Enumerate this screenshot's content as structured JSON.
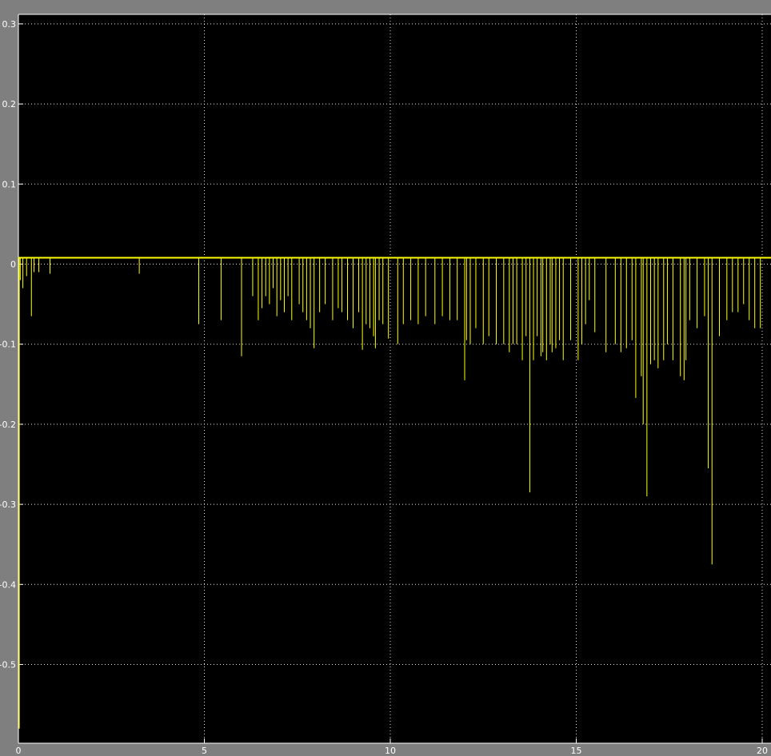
{
  "window": {
    "background": "#7f7f7f"
  },
  "chart_data": {
    "type": "line",
    "title": "",
    "xlabel": "",
    "ylabel": "",
    "xlim": [
      0,
      20
    ],
    "ylim": [
      -0.58,
      0.31
    ],
    "grid": true,
    "legend": "none",
    "colors": {
      "plot_background": "#000000",
      "line": "#ffff00",
      "grid": "#e0e0e0",
      "axis": "#ffffff",
      "tick_label": "#ffffff",
      "frame": "#7f7f7f"
    },
    "x_ticks": [
      0,
      5,
      10,
      15,
      20
    ],
    "x_tick_labels": [
      "0",
      "5",
      "10",
      "15",
      "20"
    ],
    "y_ticks": [
      0.3,
      0.2,
      0.1,
      0,
      -0.1,
      -0.2,
      -0.3,
      -0.4,
      -0.5
    ],
    "y_tick_labels": [
      "0.3",
      "0.2",
      "0.1",
      "0",
      "-0.1",
      "-0.2",
      "-0.3",
      "-0.4",
      "-0.5"
    ],
    "baseline": 0.008,
    "initial_segment": {
      "x": [
        0,
        0
      ],
      "y": [
        -0.58,
        0.008
      ]
    },
    "series": [
      {
        "name": "",
        "spikes_x": [
          0.05,
          0.12,
          0.22,
          0.35,
          0.42,
          0.55,
          0.85,
          3.25,
          4.85,
          5.45,
          6.0,
          6.3,
          6.45,
          6.55,
          6.65,
          6.75,
          6.85,
          6.95,
          7.05,
          7.15,
          7.25,
          7.35,
          7.55,
          7.65,
          7.75,
          7.85,
          7.95,
          8.1,
          8.25,
          8.45,
          8.6,
          8.7,
          8.85,
          9.0,
          9.15,
          9.25,
          9.35,
          9.45,
          9.55,
          9.6,
          9.7,
          9.8,
          9.95,
          10.2,
          10.35,
          10.55,
          10.75,
          10.95,
          11.2,
          11.4,
          11.6,
          11.8,
          12.0,
          12.05,
          12.15,
          12.3,
          12.5,
          12.65,
          12.85,
          13.05,
          13.2,
          13.3,
          13.4,
          13.55,
          13.65,
          13.75,
          13.85,
          13.95,
          14.05,
          14.1,
          14.2,
          14.3,
          14.35,
          14.45,
          14.55,
          14.65,
          14.85,
          15.05,
          15.15,
          15.25,
          15.35,
          15.5,
          15.8,
          16.05,
          16.2,
          16.35,
          16.5,
          16.6,
          16.75,
          16.8,
          16.9,
          17.0,
          17.1,
          17.2,
          17.35,
          17.45,
          17.6,
          17.8,
          17.9,
          17.95,
          18.05,
          18.25,
          18.45,
          18.55,
          18.65,
          18.85,
          19.05,
          19.2,
          19.35,
          19.5,
          19.65,
          19.8,
          19.95
        ],
        "spikes_y": [
          -0.02,
          -0.03,
          -0.015,
          -0.065,
          -0.01,
          -0.01,
          -0.012,
          -0.012,
          -0.075,
          -0.07,
          -0.115,
          -0.04,
          -0.07,
          -0.055,
          -0.04,
          -0.05,
          -0.03,
          -0.065,
          -0.045,
          -0.06,
          -0.04,
          -0.07,
          -0.05,
          -0.06,
          -0.07,
          -0.08,
          -0.105,
          -0.06,
          -0.05,
          -0.07,
          -0.055,
          -0.06,
          -0.07,
          -0.08,
          -0.06,
          -0.107,
          -0.075,
          -0.08,
          -0.09,
          -0.105,
          -0.07,
          -0.075,
          -0.093,
          -0.1,
          -0.075,
          -0.07,
          -0.075,
          -0.065,
          -0.075,
          -0.065,
          -0.07,
          -0.07,
          -0.145,
          -0.095,
          -0.1,
          -0.08,
          -0.1,
          -0.09,
          -0.1,
          -0.1,
          -0.11,
          -0.1,
          -0.1,
          -0.12,
          -0.09,
          -0.285,
          -0.12,
          -0.09,
          -0.115,
          -0.11,
          -0.12,
          -0.1,
          -0.11,
          -0.105,
          -0.095,
          -0.12,
          -0.095,
          -0.12,
          -0.1,
          -0.075,
          -0.045,
          -0.085,
          -0.11,
          -0.1,
          -0.11,
          -0.105,
          -0.095,
          -0.167,
          -0.14,
          -0.2,
          -0.29,
          -0.125,
          -0.12,
          -0.13,
          -0.12,
          -0.1,
          -0.12,
          -0.14,
          -0.145,
          -0.12,
          -0.07,
          -0.08,
          -0.065,
          -0.255,
          -0.375,
          -0.09,
          -0.07,
          -0.06,
          -0.06,
          -0.05,
          -0.07,
          -0.08,
          -0.08
        ]
      }
    ]
  }
}
